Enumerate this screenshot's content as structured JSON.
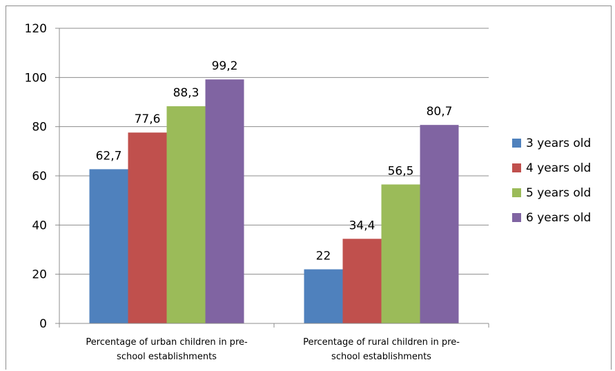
{
  "chart_data": {
    "type": "bar",
    "title": "",
    "xlabel": "",
    "ylabel": "",
    "ylim": [
      0,
      120
    ],
    "yticks": [
      0,
      20,
      40,
      60,
      80,
      100,
      120
    ],
    "grid": true,
    "legend_position": "right",
    "categories": [
      [
        "Percentage of urban children in pre-",
        "school establishments"
      ],
      [
        "Percentage of rural children in pre-",
        "school establishments"
      ]
    ],
    "series": [
      {
        "name": "3 years old",
        "color": "#4f81bd",
        "values": [
          62.7,
          22
        ],
        "labels": [
          "62,7",
          "22"
        ]
      },
      {
        "name": "4 years old",
        "color": "#c0504d",
        "values": [
          77.6,
          34.4
        ],
        "labels": [
          "77,6",
          "34,4"
        ]
      },
      {
        "name": "5 years old",
        "color": "#9bbb59",
        "values": [
          88.3,
          56.5
        ],
        "labels": [
          "88,3",
          "56,5"
        ]
      },
      {
        "name": "6 years old",
        "color": "#8064a2",
        "values": [
          99.2,
          80.7
        ],
        "labels": [
          "99,2",
          "80,7"
        ]
      }
    ]
  }
}
